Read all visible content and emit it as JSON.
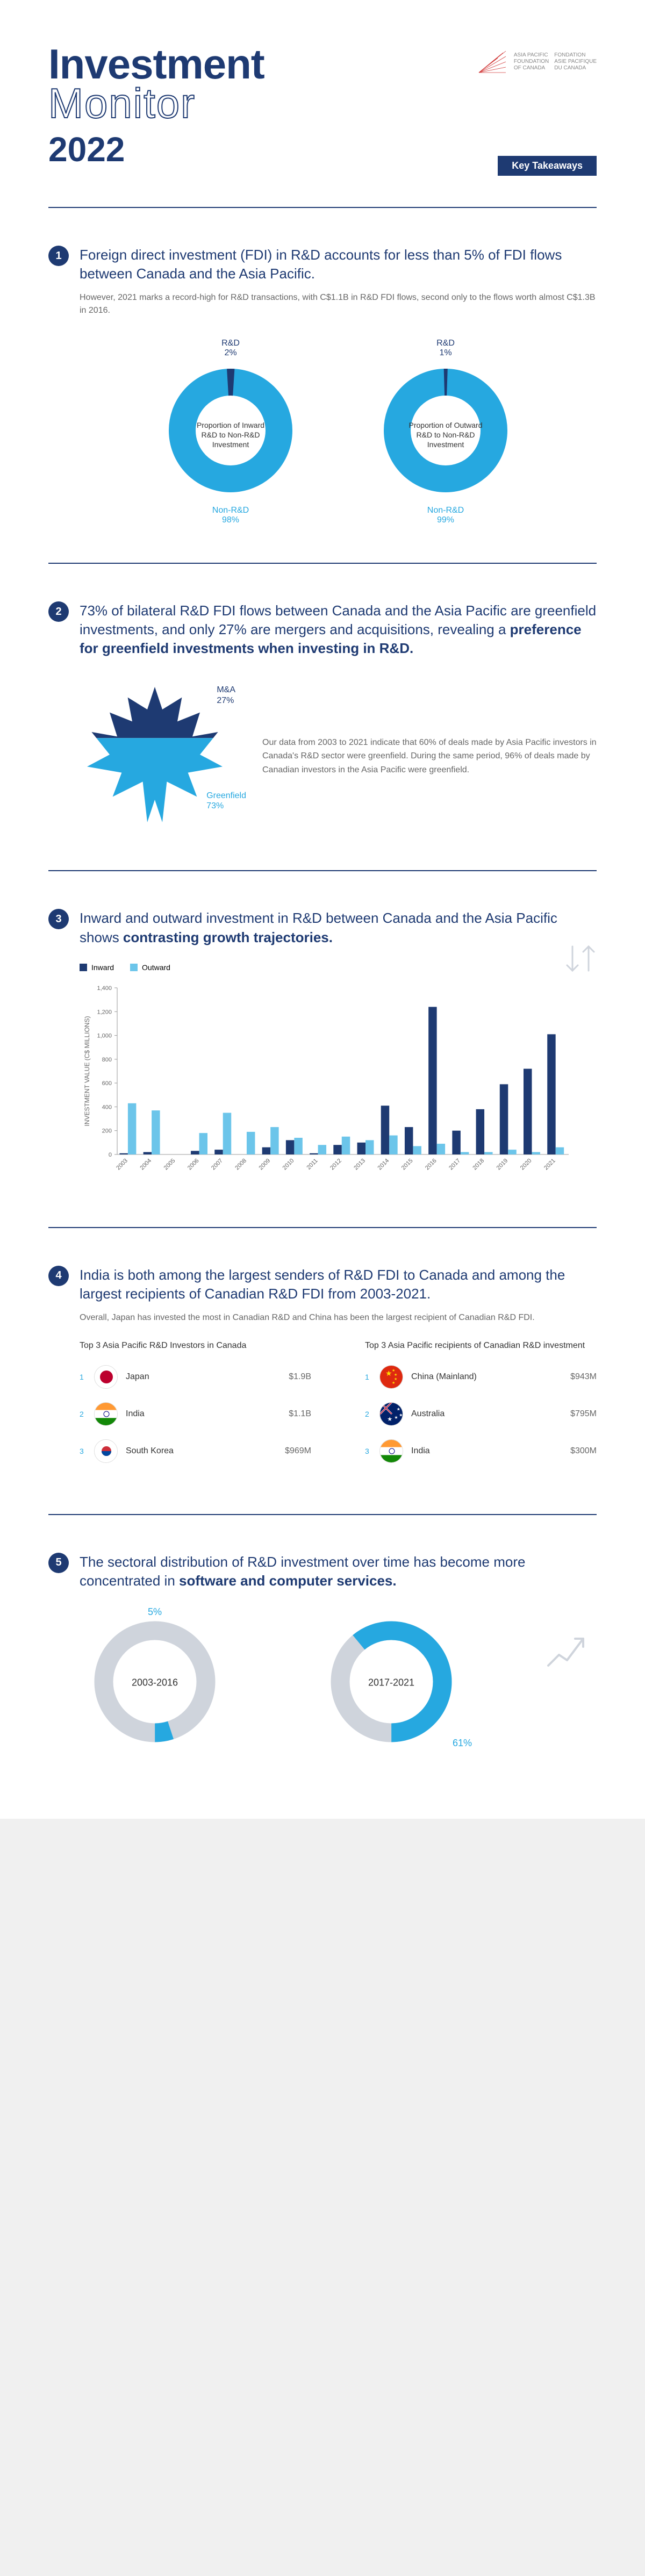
{
  "colors": {
    "primary": "#1e3a72",
    "accent": "#26a8e0",
    "light_accent": "#6cc5ea",
    "grey": "#cfd4dc",
    "text_grey": "#666666",
    "bg": "#ffffff"
  },
  "header": {
    "title_l1": "Investment",
    "title_l2": "Monitor",
    "year": "2022",
    "logo_text_l1": "ASIA PACIFIC",
    "logo_text_l2": "FOUNDATION",
    "logo_text_l3": "OF CANADA",
    "logo_text_l4": "FONDATION",
    "logo_text_l5": "ASIE PACIFIQUE",
    "logo_text_l6": "DU CANADA",
    "key_takeaways": "Key Takeaways"
  },
  "s1": {
    "num": "1",
    "headline": "Foreign direct investment (FDI) in R&D accounts for less than 5% of FDI flows between Canada and the Asia Pacific.",
    "sub": "However, 2021 marks a record-high for R&D transactions, with C$1.1B in R&D FDI flows, second only to the flows worth almost C$1.3B in 2016.",
    "donuts": [
      {
        "top_label": "R&D",
        "top_pct": "2%",
        "center": "Proportion of Inward R&D to Non-R&D Investment",
        "bottom_label": "Non-R&D",
        "bottom_pct": "98%",
        "slice_deg": 7.2
      },
      {
        "top_label": "R&D",
        "top_pct": "1%",
        "center": "Proportion of Outward R&D to Non-R&D Investment",
        "bottom_label": "Non-R&D",
        "bottom_pct": "99%",
        "slice_deg": 3.6
      }
    ]
  },
  "s2": {
    "num": "2",
    "headline_pre": "73% of bilateral R&D FDI flows between Canada and the Asia Pacific are greenfield investments, and only 27% are mergers and acquisitions, revealing a ",
    "headline_bold": "preference for greenfield investments when investing in R&D.",
    "ma_label": "M&A",
    "ma_pct": "27%",
    "gf_label": "Greenfield",
    "gf_pct": "73%",
    "side_text": "Our data from 2003 to 2021 indicate that 60% of deals made by Asia Pacific investors in Canada's R&D sector were greenfield. During the same period, 96% of deals made by Canadian investors in the Asia Pacific were greenfield."
  },
  "s3": {
    "num": "3",
    "headline_pre": "Inward and outward investment in R&D between Canada and the Asia Pacific shows ",
    "headline_bold": "contrasting growth trajectories.",
    "legend": {
      "inward": "Inward",
      "outward": "Outward"
    },
    "y_axis_title": "INVESTMENT VALUE (C$ MILLIONS)",
    "y_ticks": [
      "0",
      "200",
      "400",
      "600",
      "800",
      "1,000",
      "1,200",
      "1,400"
    ],
    "y_max": 1400,
    "years": [
      "2003",
      "2004",
      "2005",
      "2006",
      "2007",
      "2008",
      "2009",
      "2010",
      "2011",
      "2012",
      "2013",
      "2014",
      "2015",
      "2016",
      "2017",
      "2018",
      "2019",
      "2020",
      "2021"
    ],
    "inward": [
      10,
      20,
      0,
      30,
      40,
      0,
      60,
      120,
      10,
      80,
      100,
      410,
      230,
      1240,
      200,
      380,
      590,
      720,
      1010
    ],
    "outward": [
      430,
      370,
      0,
      180,
      350,
      190,
      230,
      140,
      80,
      150,
      120,
      160,
      70,
      90,
      20,
      20,
      40,
      20,
      60
    ]
  },
  "s4": {
    "num": "4",
    "headline": "India is both among the largest senders of R&D FDI to Canada and among the largest recipients of Canadian R&D FDI from 2003-2021.",
    "sub": "Overall, Japan has invested the most in Canadian R&D and China has been the largest recipient of Canadian R&D FDI.",
    "col1_title": "Top 3 Asia Pacific R&D Investors in Canada",
    "col2_title": "Top 3 Asia Pacific recipients of Canadian R&D investment",
    "investors": [
      {
        "rank": "1",
        "flag": "JP",
        "name": "Japan",
        "val": "$1.9B"
      },
      {
        "rank": "2",
        "flag": "IN",
        "name": "India",
        "val": "$1.1B"
      },
      {
        "rank": "3",
        "flag": "KR",
        "name": "South Korea",
        "val": "$969M"
      }
    ],
    "recipients": [
      {
        "rank": "1",
        "flag": "CN",
        "name": "China (Mainland)",
        "val": "$943M"
      },
      {
        "rank": "2",
        "flag": "AU",
        "name": "Australia",
        "val": "$795M"
      },
      {
        "rank": "3",
        "flag": "IN",
        "name": "India",
        "val": "$300M"
      }
    ]
  },
  "s5": {
    "num": "5",
    "headline_pre": "The sectoral distribution of R&D investment over time has become more concentrated in ",
    "headline_bold": "software and computer services.",
    "rings": [
      {
        "label": "2003-2016",
        "pct": "5%",
        "pct_val": 5
      },
      {
        "label": "2017-2021",
        "pct": "61%",
        "pct_val": 61
      }
    ]
  }
}
